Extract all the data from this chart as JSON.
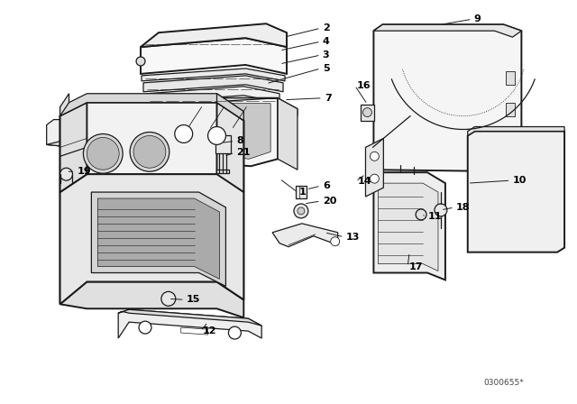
{
  "background_color": "#ffffff",
  "line_color": "#1a1a1a",
  "watermark": "0300655*",
  "figsize": [
    6.4,
    4.48
  ],
  "dpi": 100,
  "lw": 0.9
}
